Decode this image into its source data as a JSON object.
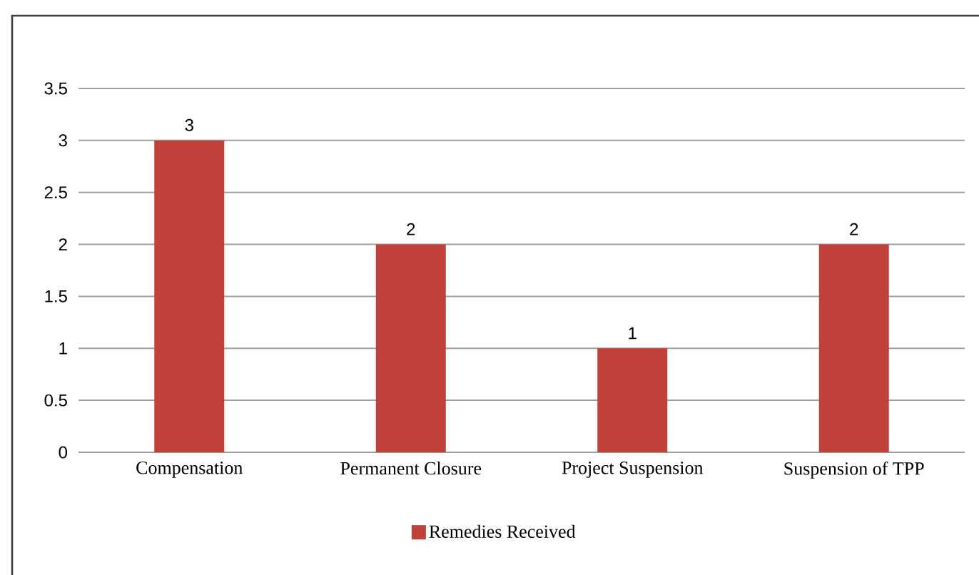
{
  "chart_data": {
    "type": "bar",
    "categories": [
      "Compensation",
      "Permanent Closure",
      "Project Suspension",
      "Suspension of TPP"
    ],
    "series": [
      {
        "name": "Remedies Received",
        "color": "#c0403a",
        "values": [
          3,
          2,
          1,
          2
        ]
      }
    ],
    "ylim": [
      0,
      3.5
    ],
    "yticks": [
      0,
      0.5,
      1,
      1.5,
      2,
      2.5,
      3,
      3.5
    ],
    "grid": "y",
    "legend": "bottom",
    "data_labels": true
  }
}
